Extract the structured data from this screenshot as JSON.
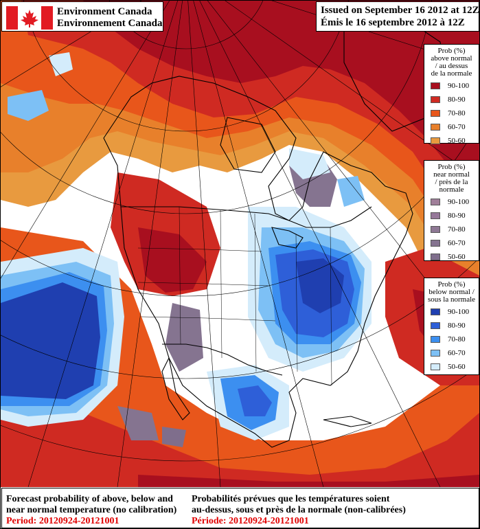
{
  "branding": {
    "name_en": "Environment Canada",
    "name_fr": "Environnement Canada",
    "flag_icon": "canada-flag-icon"
  },
  "issued": {
    "en": "Issued on September 16 2012 at 12Z",
    "fr": "Émis le 16 septembre 2012 à 12Z"
  },
  "legend_above": {
    "title": [
      "Prob (%)",
      "above normal",
      "/ au dessus",
      "de la normale"
    ],
    "ranges": [
      "90-100",
      "80-90",
      "70-80",
      "60-70",
      "50-60"
    ],
    "colors": [
      "#a80f1f",
      "#cf2a22",
      "#e8561b",
      "#e8802b",
      "#e89a3f"
    ]
  },
  "legend_near": {
    "title": [
      "Prob (%)",
      "near normal",
      "/ près de la",
      "normale"
    ],
    "ranges": [
      "90-100",
      "80-90",
      "70-80",
      "60-70",
      "50-60"
    ],
    "colors": [
      "#a07f9a",
      "#96789a",
      "#8e7894",
      "#857490",
      "#7f6e8c"
    ]
  },
  "legend_below": {
    "title": [
      "Prob (%)",
      "below normal /",
      "sous la normale"
    ],
    "ranges": [
      "90-100",
      "80-90",
      "70-80",
      "60-70",
      "50-60"
    ],
    "colors": [
      "#1f3fb0",
      "#2e5fd8",
      "#3c8ff0",
      "#7dc0f5",
      "#d4ecfb"
    ]
  },
  "caption": {
    "en": [
      "Forecast probability of above, below and",
      "near normal temperature (no calibration)"
    ],
    "en_period": "Period: 20120924-20121001",
    "fr": [
      "Probabilités prévues que les températures soient",
      "au-dessus, sous et près de la normale (non-calibrées)"
    ],
    "fr_period": "Période: 20120924-20121001"
  },
  "map": {
    "background": "#ffffff",
    "land_outline": "#000000"
  }
}
